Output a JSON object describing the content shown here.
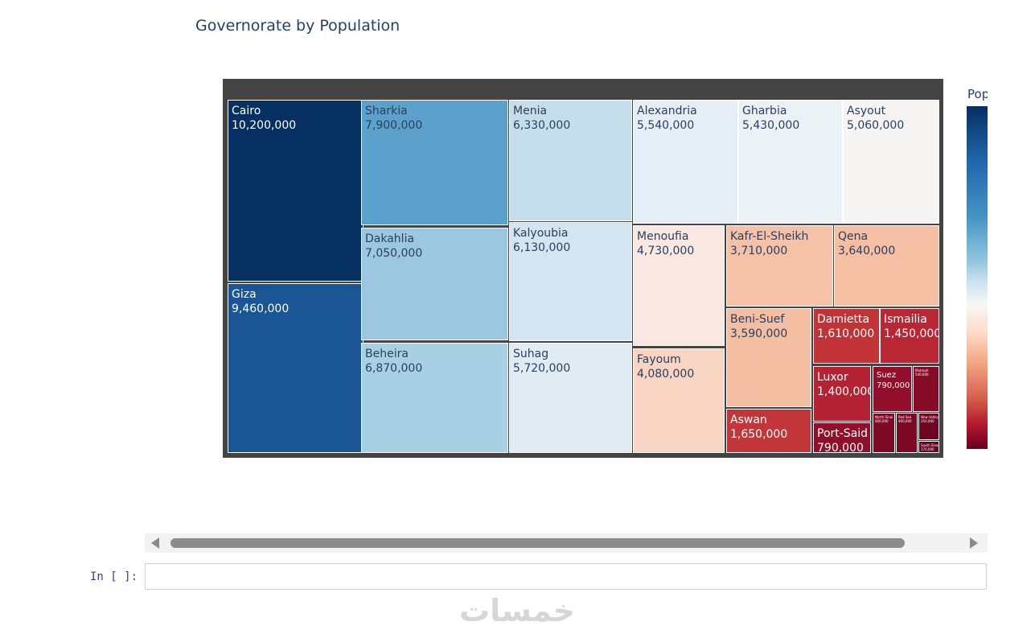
{
  "chart_data": {
    "type": "treemap",
    "title": "Governorate by Population",
    "colorbar_title": "Pop",
    "colorscale": "RdBu",
    "nodes": [
      {
        "name": "Cairo",
        "value": 10200000,
        "label": "10,200,000",
        "color": "#053061",
        "text_color": "#ffffff"
      },
      {
        "name": "Giza",
        "value": 9460000,
        "label": "9,460,000",
        "color": "#1a5596",
        "text_color": "#ffffff"
      },
      {
        "name": "Sharkia",
        "value": 7900000,
        "label": "7,900,000",
        "color": "#5ba1cb",
        "text_color": "#2a3f5f"
      },
      {
        "name": "Dakahlia",
        "value": 7050000,
        "label": "7,050,000",
        "color": "#9bc8e0",
        "text_color": "#2a3f5f"
      },
      {
        "name": "Beheira",
        "value": 6870000,
        "label": "6,870,000",
        "color": "#a8d0e5",
        "text_color": "#2a3f5f"
      },
      {
        "name": "Menia",
        "value": 6330000,
        "label": "6,330,000",
        "color": "#c5deec",
        "text_color": "#2a3f5f"
      },
      {
        "name": "Kalyoubia",
        "value": 6130000,
        "label": "6,130,000",
        "color": "#d2e5f0",
        "text_color": "#2a3f5f"
      },
      {
        "name": "Suhag",
        "value": 5720000,
        "label": "5,720,000",
        "color": "#e0ebf3",
        "text_color": "#2a3f5f"
      },
      {
        "name": "Alexandria",
        "value": 5540000,
        "label": "5,540,000",
        "color": "#e6eef5",
        "text_color": "#2a3f5f"
      },
      {
        "name": "Gharbia",
        "value": 5430000,
        "label": "5,430,000",
        "color": "#ecf1f5",
        "text_color": "#2a3f5f"
      },
      {
        "name": "Asyout",
        "value": 5060000,
        "label": "5,060,000",
        "color": "#f6f4f3",
        "text_color": "#2a3f5f"
      },
      {
        "name": "Menoufia",
        "value": 4730000,
        "label": "4,730,000",
        "color": "#f8e8e1",
        "text_color": "#2a3f5f"
      },
      {
        "name": "Fayoum",
        "value": 4080000,
        "label": "4,080,000",
        "color": "#f8d5c2",
        "text_color": "#2a3f5f"
      },
      {
        "name": "Kafr-El-Sheikh",
        "value": 3710000,
        "label": "3,710,000",
        "color": "#f5c2a8",
        "text_color": "#2a3f5f"
      },
      {
        "name": "Qena",
        "value": 3640000,
        "label": "3,640,000",
        "color": "#f4bfa3",
        "text_color": "#2a3f5f"
      },
      {
        "name": "Beni-Suef",
        "value": 3590000,
        "label": "3,590,000",
        "color": "#f4bea2",
        "text_color": "#2a3f5f"
      },
      {
        "name": "Aswan",
        "value": 1650000,
        "label": "1,650,000",
        "color": "#c2363a",
        "text_color": "#ffffff"
      },
      {
        "name": "Damietta",
        "value": 1610000,
        "label": "1,610,000",
        "color": "#c13337",
        "text_color": "#ffffff"
      },
      {
        "name": "Ismailia",
        "value": 1450000,
        "label": "1,450,000",
        "color": "#b92734",
        "text_color": "#ffffff"
      },
      {
        "name": "Luxor",
        "value": 1400000,
        "label": "1,400,000",
        "color": "#b52332",
        "text_color": "#ffffff"
      },
      {
        "name": "Port-Said",
        "value": 790000,
        "label": "790,000",
        "color": "#910f2a",
        "text_color": "#ffffff"
      },
      {
        "name": "Suez",
        "value": 790000,
        "label": "790,000",
        "color": "#910f2a",
        "text_color": "#ffffff"
      },
      {
        "name": "Matrouh",
        "value": 540000,
        "label": "540,000",
        "color": "#860b27",
        "text_color": "#ffffff"
      },
      {
        "name": "North Sinai",
        "value": 460000,
        "label": "460,000",
        "color": "#800925",
        "text_color": "#ffffff"
      },
      {
        "name": "Red Sea",
        "value": 400000,
        "label": "400,000",
        "color": "#7c0824",
        "text_color": "#ffffff"
      },
      {
        "name": "New Valley",
        "value": 250000,
        "label": "250,000",
        "color": "#6f0421",
        "text_color": "#ffffff"
      },
      {
        "name": "South Sinai",
        "value": 170000,
        "label": "170,000",
        "color": "#6a0220",
        "text_color": "#ffffff"
      }
    ]
  },
  "notebook": {
    "prompt": "In [ ]:",
    "watermark": "خمسات"
  }
}
